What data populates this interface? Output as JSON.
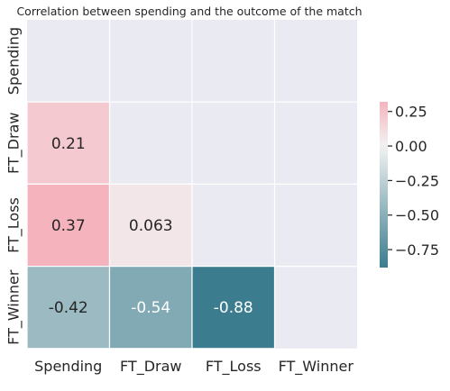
{
  "chart_data": {
    "type": "heatmap",
    "title": "Correlation between spending and the outcome of the match",
    "rows": [
      "Spending",
      "FT_Draw",
      "FT_Loss",
      "FT_Winner"
    ],
    "columns": [
      "Spending",
      "FT_Draw",
      "FT_Loss",
      "FT_Winner"
    ],
    "masked": "upper-triangle-and-diagonal",
    "cells": [
      {
        "row": "FT_Draw",
        "col": "Spending",
        "value": 0.21,
        "label": "0.21"
      },
      {
        "row": "FT_Loss",
        "col": "Spending",
        "value": 0.37,
        "label": "0.37"
      },
      {
        "row": "FT_Loss",
        "col": "FT_Draw",
        "value": 0.063,
        "label": "0.063"
      },
      {
        "row": "FT_Winner",
        "col": "Spending",
        "value": -0.42,
        "label": "-0.42"
      },
      {
        "row": "FT_Winner",
        "col": "FT_Draw",
        "value": -0.54,
        "label": "-0.54"
      },
      {
        "row": "FT_Winner",
        "col": "FT_Loss",
        "value": -0.88,
        "label": "-0.88"
      }
    ],
    "colorbar": {
      "vmin": -0.88,
      "vmax": 0.32,
      "ticks": [
        0.25,
        0.0,
        -0.25,
        -0.5,
        -0.75
      ],
      "tick_labels": [
        "0.25",
        "0.00",
        "−0.25",
        "−0.50",
        "−0.75"
      ]
    },
    "colors": {
      "negative": "#3b7d8e",
      "center": "#f2f2f2",
      "positive": "#f5b4bd",
      "masked_background": "#eaeaf2",
      "grid_line": "#ffffff",
      "text_dark": "#262626",
      "text_light": "#ffffff"
    }
  }
}
